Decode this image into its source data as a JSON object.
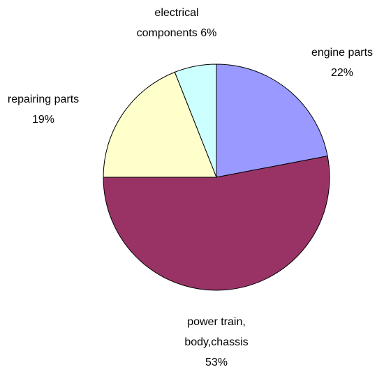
{
  "chart_data": {
    "type": "pie",
    "categories": [
      "engine parts",
      "power train, body,chassis",
      "repairing parts",
      "electrical components"
    ],
    "values": [
      22,
      53,
      19,
      6
    ],
    "value_labels": [
      "22%",
      "53%",
      "19%",
      "6%"
    ],
    "colors": [
      "#9999ff",
      "#993366",
      "#ffffcc",
      "#ccffff"
    ]
  }
}
